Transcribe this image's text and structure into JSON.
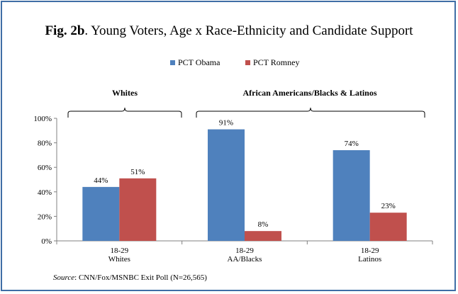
{
  "figure": {
    "title_bold": "Fig. 2b",
    "title_rest": ". Young Voters, Age x Race-Ethnicity  and Candidate Support",
    "source_label": "Source",
    "source_text": ": CNN/Fox/MSNBC  Exit Poll (N=26,565)"
  },
  "groups": [
    {
      "label": "Whites"
    },
    {
      "label": "African Americans/Blacks & Latinos"
    }
  ],
  "colors": {
    "obama": "#4f81bd",
    "romney": "#c0504d",
    "frame": "#3f6ea6"
  },
  "chart_data": {
    "type": "bar",
    "categories": [
      "18-29 Whites",
      "18-29 AA/Blacks",
      "18-29 Latinos"
    ],
    "category_lines": [
      [
        "18-29",
        "Whites"
      ],
      [
        "18-29",
        "AA/Blacks"
      ],
      [
        "18-29",
        "Latinos"
      ]
    ],
    "series": [
      {
        "name": "PCT Obama",
        "values": [
          44,
          91,
          74
        ],
        "labels": [
          "44%",
          "91%",
          "74%"
        ]
      },
      {
        "name": "PCT Romney",
        "values": [
          51,
          8,
          23
        ],
        "labels": [
          "51%",
          "8%",
          "23%"
        ]
      }
    ],
    "ylim": [
      0,
      100
    ],
    "yticks": [
      0,
      20,
      40,
      60,
      80,
      100
    ],
    "ytick_labels": [
      "0%",
      "20%",
      "40%",
      "60%",
      "80%",
      "100%"
    ],
    "legend_position": "top",
    "grid": false
  }
}
